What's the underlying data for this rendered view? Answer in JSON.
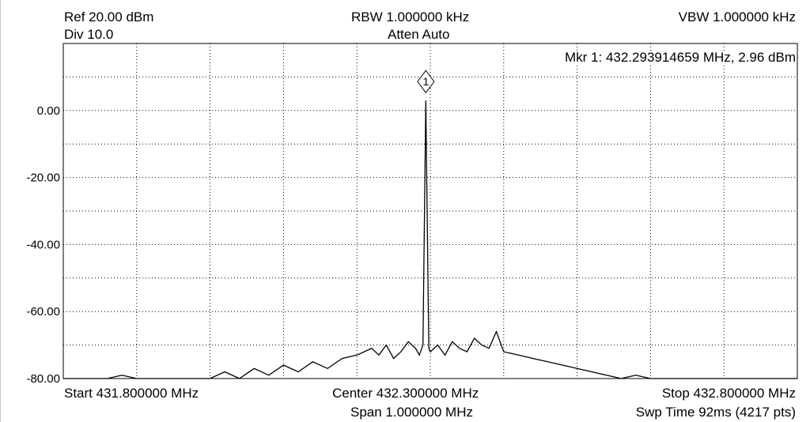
{
  "header": {
    "ref": "Ref 20.00 dBm",
    "div": "Div 10.0",
    "rbw": "RBW 1.000000 kHz",
    "atten": "Atten Auto",
    "vbw": "VBW 1.000000 kHz"
  },
  "marker": {
    "readout": "Mkr 1: 432.293914659 MHz, 2.96 dBm",
    "label": "1",
    "freq_mhz": 432.293914659,
    "level_dbm": 2.96
  },
  "footer": {
    "start": "Start 431.800000 MHz",
    "center": "Center 432.300000 MHz",
    "stop": "Stop 432.800000 MHz",
    "span": "Span 1.000000 MHz",
    "swp": "Swp Time 92ms (4217 pts)"
  },
  "chart_data": {
    "type": "line",
    "title": "",
    "xlabel": "",
    "ylabel": "",
    "xlim": [
      431.8,
      432.8
    ],
    "ylim": [
      -80,
      20
    ],
    "y_ticks": [
      {
        "value": 0,
        "label": "0.00"
      },
      {
        "value": -20,
        "label": "-20.00"
      },
      {
        "value": -40,
        "label": "-40.00"
      },
      {
        "value": -60,
        "label": "-60.00"
      },
      {
        "value": -80,
        "label": "-80.00"
      }
    ],
    "grid": true,
    "series": [
      {
        "x": [
          431.8,
          431.82,
          431.84,
          431.86,
          431.88,
          431.9,
          431.92,
          431.94,
          431.96,
          431.98,
          432.0,
          432.02,
          432.04,
          432.06,
          432.08,
          432.1,
          432.12,
          432.14,
          432.16,
          432.18,
          432.2,
          432.21,
          432.22,
          432.23,
          432.24,
          432.25,
          432.26,
          432.27,
          432.28,
          432.285,
          432.29,
          432.2939,
          432.298,
          432.3,
          432.31,
          432.32,
          432.33,
          432.34,
          432.35,
          432.36,
          432.37,
          432.38,
          432.39,
          432.4,
          432.42,
          432.44,
          432.46,
          432.48,
          432.5,
          432.52,
          432.54,
          432.56,
          432.58,
          432.6,
          432.62,
          432.64,
          432.66,
          432.68,
          432.7,
          432.72,
          432.74,
          432.76,
          432.78,
          432.8
        ],
        "values": [
          -80,
          -80,
          -80,
          -80,
          -79,
          -80,
          -80,
          -80,
          -80,
          -80,
          -80,
          -78,
          -80,
          -77,
          -79,
          -76,
          -78,
          -75,
          -77,
          -74,
          -73,
          -72,
          -71,
          -73,
          -70,
          -74,
          -72,
          -69,
          -71,
          -73,
          -70,
          2.96,
          -71,
          -72,
          -70,
          -73,
          -69,
          -71,
          -72,
          -68,
          -70,
          -71,
          -66,
          -72,
          -73,
          -74,
          -75,
          -76,
          -77,
          -78,
          -79,
          -80,
          -79,
          -80,
          -80,
          -80,
          -80,
          -80,
          -80,
          -80,
          -80,
          -80,
          -80,
          -80
        ]
      }
    ]
  }
}
